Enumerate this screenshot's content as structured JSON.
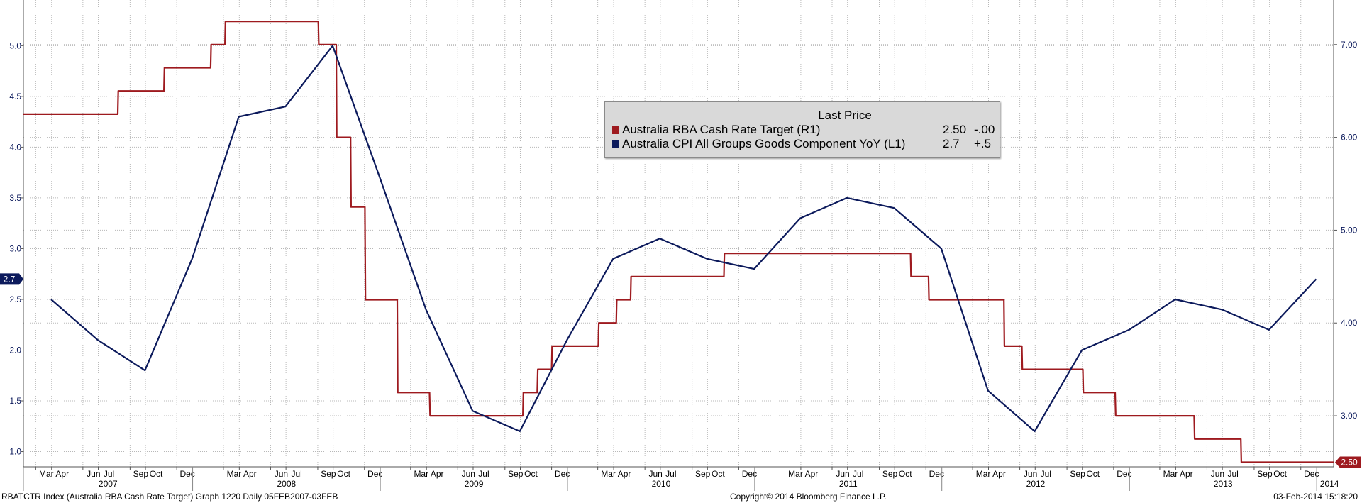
{
  "legend": {
    "header": "Last Price",
    "items": [
      {
        "name": "Australia RBA Cash Rate Target  (R1)",
        "value": "2.50",
        "change": "-.00",
        "color": "#9e1a1f"
      },
      {
        "name": "Australia CPI All Groups Goods Component YoY  (L1)",
        "value": "2.7",
        "change": "+.5",
        "color": "#0c1a5c"
      }
    ]
  },
  "footer": {
    "left": "RBATCTR Index (Australia RBA Cash Rate Target) Graph 1220  Daily 05FEB2007-03FEB",
    "center": "Copyright© 2014 Bloomberg Finance L.P.",
    "right": "03-Feb-2014 15:18:20"
  },
  "chart_data": {
    "type": "line",
    "x_range": [
      "2007-02-05",
      "2014-02-03"
    ],
    "grid": true,
    "legend_position": "top-center",
    "left_axis": {
      "range": [
        0.85,
        5.45
      ],
      "ticks": [
        "5.0",
        "4.5",
        "4.0",
        "3.5",
        "3.0",
        "2.5",
        "2.0",
        "1.5",
        "1.0"
      ],
      "last_value_label": "2.7",
      "color": "#0c1a5c"
    },
    "right_axis": {
      "range": [
        2.45,
        7.48
      ],
      "ticks": [
        "7.00",
        "6.00",
        "5.00",
        "4.00",
        "3.00"
      ],
      "last_value_label": "2.50",
      "color": "#9e1a1f"
    },
    "x_axis": {
      "years": [
        {
          "label": "2007",
          "months": [
            "Mar",
            "Apr",
            "Jun",
            "Jul",
            "Sep",
            "Oct",
            "Dec"
          ]
        },
        {
          "label": "2008",
          "months": [
            "Mar",
            "Apr",
            "Jun",
            "Jul",
            "Sep",
            "Oct",
            "Dec"
          ]
        },
        {
          "label": "2009",
          "months": [
            "Mar",
            "Apr",
            "Jun",
            "Jul",
            "Sep",
            "Oct",
            "Dec"
          ]
        },
        {
          "label": "2010",
          "months": [
            "Mar",
            "Apr",
            "Jun",
            "Jul",
            "Sep",
            "Oct",
            "Dec"
          ]
        },
        {
          "label": "2011",
          "months": [
            "Mar",
            "Apr",
            "Jun",
            "Jul",
            "Sep",
            "Oct",
            "Dec"
          ]
        },
        {
          "label": "2012",
          "months": [
            "Mar",
            "Apr",
            "Jun",
            "Jul",
            "Sep",
            "Oct",
            "Dec"
          ]
        },
        {
          "label": "2013",
          "months": [
            "Mar",
            "Apr",
            "Jun",
            "Jul",
            "Sep",
            "Oct",
            "Dec"
          ]
        },
        {
          "label": "2014",
          "months": []
        }
      ]
    },
    "series": [
      {
        "name": "Australia RBA Cash Rate Target  (R1)",
        "axis": "right",
        "color": "#9e1a1f",
        "points": [
          [
            "2007-02-05",
            6.25
          ],
          [
            "2007-08-08",
            6.25
          ],
          [
            "2007-08-09",
            6.5
          ],
          [
            "2007-11-06",
            6.5
          ],
          [
            "2007-11-07",
            6.75
          ],
          [
            "2008-02-05",
            6.75
          ],
          [
            "2008-02-06",
            7.0
          ],
          [
            "2008-03-04",
            7.0
          ],
          [
            "2008-03-05",
            7.25
          ],
          [
            "2008-09-02",
            7.25
          ],
          [
            "2008-09-03",
            7.0
          ],
          [
            "2008-10-07",
            7.0
          ],
          [
            "2008-10-08",
            6.0
          ],
          [
            "2008-11-04",
            6.0
          ],
          [
            "2008-11-05",
            5.25
          ],
          [
            "2008-12-02",
            5.25
          ],
          [
            "2008-12-03",
            4.25
          ],
          [
            "2009-02-03",
            4.25
          ],
          [
            "2009-02-04",
            3.25
          ],
          [
            "2009-04-07",
            3.25
          ],
          [
            "2009-04-08",
            3.0
          ],
          [
            "2009-10-06",
            3.0
          ],
          [
            "2009-10-07",
            3.25
          ],
          [
            "2009-11-03",
            3.25
          ],
          [
            "2009-11-04",
            3.5
          ],
          [
            "2009-12-01",
            3.5
          ],
          [
            "2009-12-02",
            3.75
          ],
          [
            "2010-03-02",
            3.75
          ],
          [
            "2010-03-03",
            4.0
          ],
          [
            "2010-04-06",
            4.0
          ],
          [
            "2010-04-07",
            4.25
          ],
          [
            "2010-05-04",
            4.25
          ],
          [
            "2010-05-05",
            4.5
          ],
          [
            "2010-11-02",
            4.5
          ],
          [
            "2010-11-03",
            4.75
          ],
          [
            "2011-11-01",
            4.75
          ],
          [
            "2011-11-02",
            4.5
          ],
          [
            "2011-12-06",
            4.5
          ],
          [
            "2011-12-07",
            4.25
          ],
          [
            "2012-05-01",
            4.25
          ],
          [
            "2012-05-02",
            3.75
          ],
          [
            "2012-06-05",
            3.75
          ],
          [
            "2012-06-06",
            3.5
          ],
          [
            "2012-10-02",
            3.5
          ],
          [
            "2012-10-03",
            3.25
          ],
          [
            "2012-12-04",
            3.25
          ],
          [
            "2012-12-05",
            3.0
          ],
          [
            "2013-05-07",
            3.0
          ],
          [
            "2013-05-08",
            2.75
          ],
          [
            "2013-08-06",
            2.75
          ],
          [
            "2013-08-07",
            2.5
          ],
          [
            "2014-02-03",
            2.5
          ]
        ]
      },
      {
        "name": "Australia CPI All Groups Goods Component YoY  (L1)",
        "axis": "left",
        "color": "#0c1a5c",
        "points": [
          [
            "2007-03-31",
            2.5
          ],
          [
            "2007-06-30",
            2.1
          ],
          [
            "2007-09-30",
            1.8
          ],
          [
            "2007-12-31",
            2.9
          ],
          [
            "2008-03-31",
            4.3
          ],
          [
            "2008-06-30",
            4.4
          ],
          [
            "2008-09-30",
            5.0
          ],
          [
            "2008-12-31",
            3.7
          ],
          [
            "2009-03-31",
            2.4
          ],
          [
            "2009-06-30",
            1.4
          ],
          [
            "2009-09-30",
            1.2
          ],
          [
            "2009-12-31",
            2.1
          ],
          [
            "2010-03-31",
            2.9
          ],
          [
            "2010-06-30",
            3.1
          ],
          [
            "2010-09-30",
            2.9
          ],
          [
            "2010-12-31",
            2.8
          ],
          [
            "2011-03-31",
            3.3
          ],
          [
            "2011-06-30",
            3.5
          ],
          [
            "2011-09-30",
            3.4
          ],
          [
            "2011-12-31",
            3.0
          ],
          [
            "2012-03-31",
            1.6
          ],
          [
            "2012-06-30",
            1.2
          ],
          [
            "2012-09-30",
            2.0
          ],
          [
            "2012-12-31",
            2.2
          ],
          [
            "2013-03-31",
            2.5
          ],
          [
            "2013-06-30",
            2.4
          ],
          [
            "2013-09-30",
            2.2
          ],
          [
            "2013-12-31",
            2.7
          ]
        ]
      }
    ]
  }
}
